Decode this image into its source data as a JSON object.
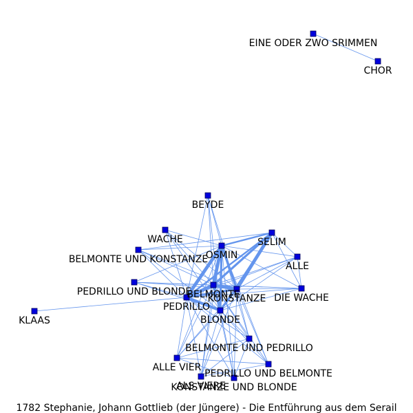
{
  "caption": "1782 Stephanie, Johann Gottlieb (der Jüngere) - Die Entführung aus dem Serail",
  "colors": {
    "edge": "#6495ed",
    "node": "#0000dd"
  },
  "nodes": [
    {
      "id": "eine-oder-zwo",
      "label": "EINE ODER ZWO SRIMMEN"
    },
    {
      "id": "chor",
      "label": "CHOR"
    },
    {
      "id": "beyde",
      "label": "BEYDE"
    },
    {
      "id": "wache",
      "label": "WACHE"
    },
    {
      "id": "selim",
      "label": "SELIM"
    },
    {
      "id": "osmin",
      "label": "OSMIN"
    },
    {
      "id": "belmonte-und-konstanze",
      "label": "BELMONTE UND KONSTANZE"
    },
    {
      "id": "alle",
      "label": "ALLE"
    },
    {
      "id": "pedrillo-und-blonde",
      "label": "PEDRILLO UND BLONDE"
    },
    {
      "id": "belmonte",
      "label": "BELMONTE"
    },
    {
      "id": "konstanze",
      "label": "KONSTANZE"
    },
    {
      "id": "die-wache",
      "label": "DIE WACHE"
    },
    {
      "id": "pedrillo",
      "label": "PEDRILLO"
    },
    {
      "id": "klaas",
      "label": "KLAAS"
    },
    {
      "id": "blonde",
      "label": "BLONDE"
    },
    {
      "id": "belmonte-und-pedrillo",
      "label": "BELMONTE UND PEDRILLO"
    },
    {
      "id": "alle-vier",
      "label": "ALLE VIER"
    },
    {
      "id": "pedrillo-und-belmonte",
      "label": "PEDRILLO UND BELMONTE"
    },
    {
      "id": "als-viere",
      "label": "ALS VIERE"
    },
    {
      "id": "konstanze-und-blonde",
      "label": "KONSTANZE UND BLONDE"
    }
  ],
  "edges": [
    {
      "source": "eine-oder-zwo",
      "target": "chor",
      "weight": 1
    },
    {
      "source": "belmonte",
      "target": "osmin",
      "weight": 6
    },
    {
      "source": "belmonte",
      "target": "konstanze",
      "weight": 6
    },
    {
      "source": "belmonte",
      "target": "pedrillo",
      "weight": 6
    },
    {
      "source": "belmonte",
      "target": "blonde",
      "weight": 4
    },
    {
      "source": "belmonte",
      "target": "selim",
      "weight": 4
    },
    {
      "source": "konstanze",
      "target": "selim",
      "weight": 6
    },
    {
      "source": "konstanze",
      "target": "osmin",
      "weight": 4
    },
    {
      "source": "konstanze",
      "target": "pedrillo",
      "weight": 4
    },
    {
      "source": "konstanze",
      "target": "blonde",
      "weight": 3
    },
    {
      "source": "pedrillo",
      "target": "osmin",
      "weight": 6
    },
    {
      "source": "pedrillo",
      "target": "blonde",
      "weight": 5
    },
    {
      "source": "pedrillo",
      "target": "selim",
      "weight": 3
    },
    {
      "source": "osmin",
      "target": "blonde",
      "weight": 4
    },
    {
      "source": "osmin",
      "target": "selim",
      "weight": 3
    },
    {
      "source": "blonde",
      "target": "selim",
      "weight": 2
    },
    {
      "source": "beyde",
      "target": "pedrillo",
      "weight": 1
    },
    {
      "source": "beyde",
      "target": "osmin",
      "weight": 1
    },
    {
      "source": "beyde",
      "target": "konstanze",
      "weight": 1
    },
    {
      "source": "beyde",
      "target": "belmonte",
      "weight": 1
    },
    {
      "source": "beyde",
      "target": "blonde",
      "weight": 1
    },
    {
      "source": "wache",
      "target": "osmin",
      "weight": 1
    },
    {
      "source": "wache",
      "target": "pedrillo",
      "weight": 1
    },
    {
      "source": "wache",
      "target": "belmonte",
      "weight": 1
    },
    {
      "source": "wache",
      "target": "konstanze",
      "weight": 1
    },
    {
      "source": "wache",
      "target": "blonde",
      "weight": 1
    },
    {
      "source": "belmonte-und-konstanze",
      "target": "osmin",
      "weight": 1
    },
    {
      "source": "belmonte-und-konstanze",
      "target": "pedrillo",
      "weight": 1
    },
    {
      "source": "belmonte-und-konstanze",
      "target": "belmonte",
      "weight": 1
    },
    {
      "source": "belmonte-und-konstanze",
      "target": "konstanze",
      "weight": 1
    },
    {
      "source": "belmonte-und-konstanze",
      "target": "blonde",
      "weight": 1
    },
    {
      "source": "belmonte-und-konstanze",
      "target": "selim",
      "weight": 1
    },
    {
      "source": "pedrillo-und-blonde",
      "target": "pedrillo",
      "weight": 1
    },
    {
      "source": "pedrillo-und-blonde",
      "target": "belmonte",
      "weight": 1
    },
    {
      "source": "pedrillo-und-blonde",
      "target": "konstanze",
      "weight": 1
    },
    {
      "source": "pedrillo-und-blonde",
      "target": "osmin",
      "weight": 1
    },
    {
      "source": "pedrillo-und-blonde",
      "target": "blonde",
      "weight": 1
    },
    {
      "source": "pedrillo-und-blonde",
      "target": "die-wache",
      "weight": 1
    },
    {
      "source": "alle",
      "target": "osmin",
      "weight": 1
    },
    {
      "source": "alle",
      "target": "konstanze",
      "weight": 1
    },
    {
      "source": "alle",
      "target": "belmonte",
      "weight": 1
    },
    {
      "source": "alle",
      "target": "pedrillo",
      "weight": 1
    },
    {
      "source": "alle",
      "target": "blonde",
      "weight": 1
    },
    {
      "source": "alle",
      "target": "selim",
      "weight": 1
    },
    {
      "source": "alle",
      "target": "die-wache",
      "weight": 1
    },
    {
      "source": "die-wache",
      "target": "konstanze",
      "weight": 1
    },
    {
      "source": "die-wache",
      "target": "belmonte",
      "weight": 1
    },
    {
      "source": "die-wache",
      "target": "pedrillo",
      "weight": 1
    },
    {
      "source": "die-wache",
      "target": "osmin",
      "weight": 1
    },
    {
      "source": "die-wache",
      "target": "selim",
      "weight": 1
    },
    {
      "source": "die-wache",
      "target": "blonde",
      "weight": 1
    },
    {
      "source": "klaas",
      "target": "pedrillo",
      "weight": 1
    },
    {
      "source": "belmonte-und-pedrillo",
      "target": "pedrillo",
      "weight": 1
    },
    {
      "source": "belmonte-und-pedrillo",
      "target": "belmonte",
      "weight": 1
    },
    {
      "source": "belmonte-und-pedrillo",
      "target": "konstanze",
      "weight": 1
    },
    {
      "source": "belmonte-und-pedrillo",
      "target": "osmin",
      "weight": 1
    },
    {
      "source": "belmonte-und-pedrillo",
      "target": "blonde",
      "weight": 1
    },
    {
      "source": "belmonte-und-pedrillo",
      "target": "alle-vier",
      "weight": 1
    },
    {
      "source": "alle-vier",
      "target": "pedrillo",
      "weight": 1
    },
    {
      "source": "alle-vier",
      "target": "belmonte",
      "weight": 1
    },
    {
      "source": "alle-vier",
      "target": "konstanze",
      "weight": 1
    },
    {
      "source": "alle-vier",
      "target": "blonde",
      "weight": 1
    },
    {
      "source": "alle-vier",
      "target": "osmin",
      "weight": 1
    },
    {
      "source": "alle-vier",
      "target": "pedrillo-und-belmonte",
      "weight": 1
    },
    {
      "source": "pedrillo-und-belmonte",
      "target": "pedrillo",
      "weight": 1
    },
    {
      "source": "pedrillo-und-belmonte",
      "target": "belmonte",
      "weight": 1
    },
    {
      "source": "pedrillo-und-belmonte",
      "target": "konstanze",
      "weight": 1
    },
    {
      "source": "pedrillo-und-belmonte",
      "target": "osmin",
      "weight": 1
    },
    {
      "source": "pedrillo-und-belmonte",
      "target": "blonde",
      "weight": 1
    },
    {
      "source": "pedrillo-und-belmonte",
      "target": "als-viere",
      "weight": 1
    },
    {
      "source": "als-viere",
      "target": "pedrillo",
      "weight": 1
    },
    {
      "source": "als-viere",
      "target": "belmonte",
      "weight": 1
    },
    {
      "source": "als-viere",
      "target": "konstanze",
      "weight": 1
    },
    {
      "source": "als-viere",
      "target": "blonde",
      "weight": 1
    },
    {
      "source": "als-viere",
      "target": "osmin",
      "weight": 1
    },
    {
      "source": "als-viere",
      "target": "belmonte-und-pedrillo",
      "weight": 1
    },
    {
      "source": "konstanze-und-blonde",
      "target": "pedrillo",
      "weight": 1
    },
    {
      "source": "konstanze-und-blonde",
      "target": "belmonte",
      "weight": 1
    },
    {
      "source": "konstanze-und-blonde",
      "target": "konstanze",
      "weight": 1
    },
    {
      "source": "konstanze-und-blonde",
      "target": "blonde",
      "weight": 1
    },
    {
      "source": "konstanze-und-blonde",
      "target": "osmin",
      "weight": 1
    },
    {
      "source": "konstanze-und-blonde",
      "target": "belmonte-und-pedrillo",
      "weight": 1
    },
    {
      "source": "konstanze-und-blonde",
      "target": "alle-vier",
      "weight": 1
    }
  ]
}
